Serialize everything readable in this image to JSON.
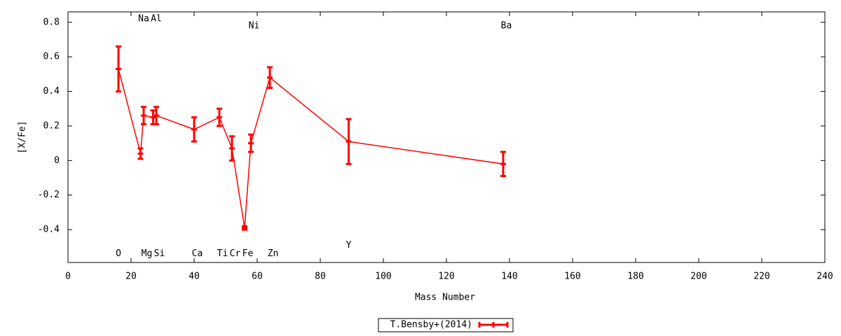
{
  "chart_data": {
    "type": "errorline",
    "x_label": "Mass Number",
    "y_label": "[X/Fe]",
    "x": [
      16,
      23,
      24,
      27,
      28,
      40,
      48,
      52,
      56,
      58,
      64,
      89,
      138
    ],
    "series": [
      {
        "name": "T.Bensby+(2014)",
        "color": "#ff0000",
        "values": [
          0.53,
          0.04,
          0.26,
          0.25,
          0.26,
          0.18,
          0.25,
          0.07,
          -0.39,
          0.1,
          0.48,
          0.11,
          -0.02
        ],
        "errors": [
          0.13,
          0.03,
          0.05,
          0.04,
          0.05,
          0.07,
          0.05,
          0.07,
          0.01,
          0.05,
          0.06,
          0.13,
          0.07
        ]
      }
    ],
    "annotations": [
      {
        "text": "O",
        "x": 16,
        "y": -0.54
      },
      {
        "text": "Na",
        "x": 24,
        "y": 0.82
      },
      {
        "text": "Al",
        "x": 28,
        "y": 0.82
      },
      {
        "text": "Mg",
        "x": 25,
        "y": -0.54
      },
      {
        "text": "Si",
        "x": 29,
        "y": -0.54
      },
      {
        "text": "Ca",
        "x": 41,
        "y": -0.54
      },
      {
        "text": "Ti",
        "x": 49,
        "y": -0.54
      },
      {
        "text": "Cr",
        "x": 53,
        "y": -0.54
      },
      {
        "text": "Fe",
        "x": 57,
        "y": -0.54
      },
      {
        "text": "Ni",
        "x": 59,
        "y": 0.78
      },
      {
        "text": "Zn",
        "x": 65,
        "y": -0.54
      },
      {
        "text": "Y",
        "x": 89,
        "y": -0.49
      },
      {
        "text": "Ba",
        "x": 139,
        "y": 0.78
      }
    ],
    "xlim": [
      0,
      240
    ],
    "xticks": [
      0,
      20,
      40,
      60,
      80,
      100,
      120,
      140,
      160,
      180,
      200,
      220,
      240
    ],
    "ylim": [
      -0.59,
      0.86
    ],
    "yticks": [
      -0.4,
      -0.2,
      0,
      0.2,
      0.4,
      0.6,
      0.8
    ],
    "legend": "bottom"
  }
}
